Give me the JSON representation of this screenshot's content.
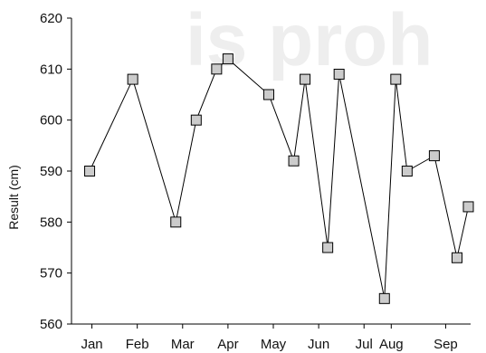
{
  "watermark": "is proh",
  "chart_data": {
    "type": "line",
    "title": "",
    "xlabel": "",
    "ylabel": "Result (cm)",
    "ylim": [
      560,
      620
    ],
    "yticks": [
      560,
      570,
      580,
      590,
      600,
      610,
      620
    ],
    "xlim": [
      0.6,
      9.0
    ],
    "x_tick_labels": [
      {
        "label": "Jan",
        "value": 1
      },
      {
        "label": "Feb",
        "value": 2
      },
      {
        "label": "Mar",
        "value": 3
      },
      {
        "label": "Apr",
        "value": 4
      },
      {
        "label": "May",
        "value": 5
      },
      {
        "label": "Jun",
        "value": 6
      },
      {
        "label": "Jul",
        "value": 7
      },
      {
        "label": "Aug",
        "value": 7.6
      },
      {
        "label": "Sep",
        "value": 8.8
      }
    ],
    "marker": "square",
    "marker_fill": "#cccccc",
    "line_color": "#000000",
    "grid": false,
    "series": [
      {
        "points": [
          {
            "x": 1.0,
            "y": 590
          },
          {
            "x": 1.95,
            "y": 608
          },
          {
            "x": 2.9,
            "y": 580
          },
          {
            "x": 3.35,
            "y": 600
          },
          {
            "x": 3.8,
            "y": 610
          },
          {
            "x": 4.05,
            "y": 612
          },
          {
            "x": 4.95,
            "y": 605
          },
          {
            "x": 5.5,
            "y": 592
          },
          {
            "x": 5.75,
            "y": 608
          },
          {
            "x": 6.25,
            "y": 575
          },
          {
            "x": 6.5,
            "y": 609
          },
          {
            "x": 7.5,
            "y": 565
          },
          {
            "x": 7.75,
            "y": 608
          },
          {
            "x": 8.0,
            "y": 590
          },
          {
            "x": 8.6,
            "y": 593
          },
          {
            "x": 9.1,
            "y": 573
          },
          {
            "x": 9.35,
            "y": 583
          }
        ]
      }
    ]
  }
}
